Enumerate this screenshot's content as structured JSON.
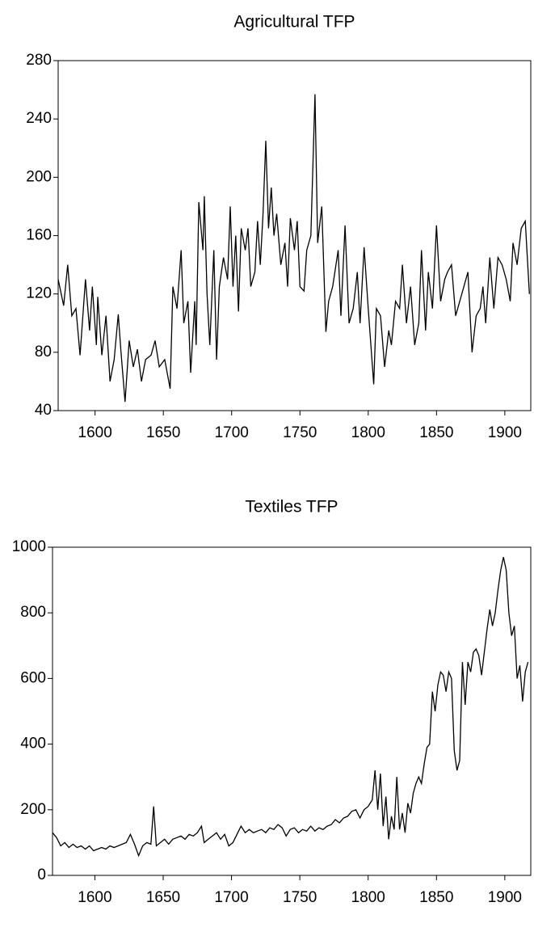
{
  "chart_data": [
    {
      "type": "line",
      "title": "Agricultural TFP",
      "color": "#000000",
      "x": [
        1573,
        1577,
        1580,
        1583,
        1586,
        1589,
        1593,
        1596,
        1598,
        1601,
        1602,
        1605,
        1608,
        1611,
        1614,
        1617,
        1619,
        1622,
        1625,
        1628,
        1631,
        1634,
        1637,
        1641,
        1644,
        1647,
        1651,
        1655,
        1657,
        1660,
        1663,
        1665,
        1668,
        1670,
        1673,
        1674,
        1676,
        1679,
        1680,
        1682,
        1684,
        1687,
        1689,
        1691,
        1694,
        1697,
        1699,
        1701,
        1703,
        1705,
        1707,
        1710,
        1712,
        1714,
        1717,
        1719,
        1721,
        1723,
        1725,
        1727,
        1729,
        1731,
        1733,
        1736,
        1739,
        1741,
        1743,
        1746,
        1748,
        1750,
        1753,
        1755,
        1758,
        1761,
        1763,
        1766,
        1769,
        1771,
        1774,
        1778,
        1780,
        1783,
        1786,
        1789,
        1792,
        1794,
        1797,
        1800,
        1804,
        1806,
        1809,
        1812,
        1815,
        1817,
        1820,
        1823,
        1825,
        1828,
        1831,
        1834,
        1837,
        1839,
        1842,
        1844,
        1847,
        1850,
        1853,
        1856,
        1858,
        1861,
        1864,
        1867,
        1870,
        1873,
        1876,
        1879,
        1882,
        1884,
        1886,
        1889,
        1892,
        1895,
        1898,
        1901,
        1904,
        1906,
        1909,
        1912,
        1915,
        1918
      ],
      "values": [
        130,
        112,
        140,
        105,
        110,
        78,
        130,
        95,
        125,
        85,
        118,
        78,
        105,
        60,
        75,
        106,
        80,
        46,
        88,
        70,
        82,
        60,
        75,
        78,
        88,
        70,
        75,
        55,
        125,
        110,
        150,
        100,
        115,
        66,
        115,
        85,
        183,
        150,
        187,
        120,
        85,
        150,
        75,
        125,
        145,
        130,
        180,
        125,
        160,
        108,
        165,
        150,
        165,
        125,
        135,
        170,
        140,
        175,
        225,
        165,
        193,
        160,
        175,
        140,
        155,
        125,
        172,
        150,
        170,
        125,
        122,
        150,
        160,
        257,
        155,
        180,
        94,
        115,
        125,
        150,
        105,
        167,
        100,
        110,
        135,
        100,
        152,
        110,
        58,
        110,
        105,
        70,
        95,
        85,
        115,
        110,
        140,
        100,
        125,
        85,
        100,
        150,
        95,
        135,
        110,
        167,
        115,
        130,
        135,
        140,
        105,
        115,
        125,
        135,
        80,
        105,
        110,
        125,
        100,
        145,
        110,
        145,
        140,
        130,
        115,
        155,
        140,
        165,
        170,
        120
      ],
      "xlim": [
        1573,
        1919
      ],
      "ylim": [
        40,
        280
      ],
      "xticks": [
        1600,
        1650,
        1700,
        1750,
        1800,
        1850,
        1900
      ],
      "yticks": [
        40,
        80,
        120,
        160,
        200,
        240,
        280
      ]
    },
    {
      "type": "line",
      "title": "Textiles TFP",
      "color": "#000000",
      "x": [
        1569,
        1572,
        1575,
        1578,
        1581,
        1584,
        1587,
        1590,
        1593,
        1596,
        1599,
        1602,
        1605,
        1608,
        1611,
        1614,
        1617,
        1620,
        1623,
        1626,
        1629,
        1632,
        1635,
        1638,
        1641,
        1643,
        1645,
        1648,
        1651,
        1654,
        1657,
        1660,
        1663,
        1666,
        1669,
        1672,
        1675,
        1678,
        1680,
        1683,
        1686,
        1689,
        1692,
        1695,
        1698,
        1701,
        1704,
        1707,
        1710,
        1713,
        1716,
        1719,
        1722,
        1725,
        1728,
        1731,
        1734,
        1737,
        1740,
        1743,
        1746,
        1749,
        1752,
        1755,
        1758,
        1761,
        1764,
        1767,
        1770,
        1773,
        1776,
        1779,
        1782,
        1785,
        1788,
        1791,
        1794,
        1797,
        1800,
        1803,
        1805,
        1807,
        1809,
        1811,
        1813,
        1815,
        1817,
        1819,
        1821,
        1823,
        1825,
        1827,
        1829,
        1831,
        1833,
        1835,
        1837,
        1839,
        1841,
        1843,
        1845,
        1847,
        1849,
        1851,
        1853,
        1855,
        1857,
        1859,
        1861,
        1863,
        1865,
        1867,
        1869,
        1871,
        1873,
        1875,
        1877,
        1879,
        1881,
        1883,
        1885,
        1887,
        1889,
        1891,
        1893,
        1895,
        1897,
        1899,
        1901,
        1903,
        1905,
        1907,
        1909,
        1911,
        1913,
        1915,
        1917
      ],
      "values": [
        130,
        115,
        90,
        100,
        85,
        95,
        85,
        90,
        80,
        90,
        75,
        80,
        85,
        80,
        90,
        85,
        90,
        95,
        100,
        125,
        95,
        60,
        90,
        100,
        95,
        210,
        90,
        100,
        110,
        95,
        110,
        115,
        120,
        110,
        125,
        120,
        130,
        150,
        100,
        110,
        120,
        130,
        110,
        125,
        90,
        100,
        125,
        150,
        130,
        140,
        130,
        135,
        140,
        130,
        145,
        140,
        155,
        145,
        120,
        140,
        145,
        130,
        140,
        135,
        150,
        135,
        145,
        140,
        150,
        155,
        170,
        160,
        175,
        180,
        195,
        200,
        175,
        200,
        210,
        230,
        320,
        200,
        310,
        150,
        240,
        110,
        180,
        140,
        300,
        140,
        190,
        130,
        220,
        190,
        250,
        280,
        300,
        280,
        340,
        390,
        400,
        560,
        500,
        580,
        620,
        610,
        560,
        620,
        600,
        380,
        320,
        350,
        650,
        520,
        650,
        620,
        680,
        690,
        670,
        610,
        680,
        750,
        810,
        760,
        800,
        870,
        930,
        970,
        930,
        800,
        730,
        760,
        600,
        640,
        530,
        620,
        650
      ],
      "xlim": [
        1569,
        1919
      ],
      "ylim": [
        0,
        1000
      ],
      "xticks": [
        1600,
        1650,
        1700,
        1750,
        1800,
        1850,
        1900
      ],
      "yticks": [
        0,
        200,
        400,
        600,
        800,
        1000
      ]
    }
  ]
}
